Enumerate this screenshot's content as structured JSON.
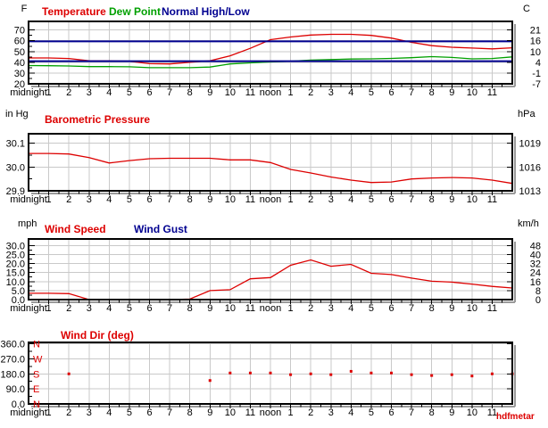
{
  "watermark": "hdfmetar",
  "colors": {
    "red": "#dd0000",
    "green": "#00a000",
    "navy": "#000090",
    "grid": "#c9c9c9",
    "axis": "#000000",
    "shadow": "#9a9a9a"
  },
  "x_axis": {
    "labels": [
      "midnight",
      "1",
      "2",
      "3",
      "4",
      "5",
      "6",
      "7",
      "8",
      "9",
      "10",
      "11",
      "noon",
      "1",
      "2",
      "3",
      "4",
      "5",
      "6",
      "7",
      "8",
      "9",
      "10",
      "11"
    ],
    "hours": 24
  },
  "chart_data": [
    {
      "type": "line",
      "unit_left": "F",
      "unit_right": "C",
      "legend": [
        {
          "label": "Temperature",
          "color": "#dd0000"
        },
        {
          "label": "Dew Point",
          "color": "#00a000"
        },
        {
          "label": "Normal High/Low",
          "color": "#000090"
        }
      ],
      "ylim": [
        20,
        78
      ],
      "xlim": [
        0,
        24
      ],
      "yticks": {
        "values": [
          70,
          60,
          50,
          40,
          30,
          20
        ],
        "labels_left": [
          "70",
          "60",
          "50",
          "40",
          "30",
          "20"
        ],
        "labels_right": [
          "21",
          "16",
          "10",
          "4",
          "-1",
          "-7"
        ]
      },
      "series": [
        {
          "name": "Temperature",
          "color": "#dd0000",
          "width": 1.3,
          "values": [
            44,
            44,
            43.5,
            41.5,
            41.3,
            41,
            38.7,
            38.5,
            40,
            41.5,
            46,
            53,
            61,
            63.5,
            65.3,
            66,
            66,
            65,
            62.5,
            58.5,
            55.5,
            54,
            53.2,
            52.5,
            53.5
          ]
        },
        {
          "name": "Dew Point",
          "color": "#00a000",
          "width": 1.3,
          "values": [
            37,
            36.8,
            36.6,
            36,
            36,
            35.8,
            35,
            35,
            35,
            35.6,
            38.5,
            39.5,
            40.3,
            41,
            42,
            42.5,
            43,
            43.2,
            43.6,
            44.3,
            45.3,
            44.5,
            43.2,
            43.5,
            45
          ]
        },
        {
          "name": "Normal High",
          "color": "#000090",
          "width": 2,
          "hline": 59.5
        },
        {
          "name": "Normal Low",
          "color": "#000090",
          "width": 2,
          "hline": 41
        }
      ]
    },
    {
      "type": "line",
      "unit_left": "in Hg",
      "unit_right": "hPa",
      "legend": [
        {
          "label": "Barometric Pressure",
          "color": "#dd0000"
        }
      ],
      "ylim": [
        29.9,
        30.14
      ],
      "xlim": [
        0,
        24
      ],
      "yticks": {
        "values": [
          30.1,
          30.0,
          29.9
        ],
        "labels_left": [
          "30.1",
          "30.0",
          "29.9"
        ],
        "labels_right": [
          "1019",
          "1016",
          "1013"
        ]
      },
      "series": [
        {
          "name": "Barometric Pressure",
          "color": "#dd0000",
          "width": 1.3,
          "values": [
            30.057,
            30.057,
            30.055,
            30.04,
            30.017,
            30.027,
            30.035,
            30.037,
            30.037,
            30.037,
            30.03,
            30.03,
            30.019,
            29.99,
            29.975,
            29.958,
            29.945,
            29.935,
            29.937,
            29.95,
            29.954,
            29.956,
            29.954,
            29.945,
            29.931
          ]
        }
      ]
    },
    {
      "type": "line",
      "unit_left": "mph",
      "unit_right": "km/h",
      "legend": [
        {
          "label": "Wind Speed",
          "color": "#dd0000"
        },
        {
          "label": "Wind Gust",
          "color": "#000090"
        }
      ],
      "ylim": [
        0,
        33.6
      ],
      "xlim": [
        0,
        24
      ],
      "yticks": {
        "values": [
          30,
          25,
          20,
          15,
          10,
          5,
          0
        ],
        "labels_left": [
          "30.0",
          "25.0",
          "20.0",
          "15.0",
          "10.0",
          "5.0",
          "0.0"
        ],
        "labels_right": [
          "48",
          "40",
          "32",
          "24",
          "16",
          "8",
          "0"
        ]
      },
      "series": [
        {
          "name": "Wind Speed",
          "color": "#dd0000",
          "width": 1.3,
          "values": [
            3.5,
            3.5,
            3.3,
            0,
            0,
            0,
            0,
            0,
            0.3,
            5,
            5.5,
            11.5,
            12.2,
            19,
            22,
            18.5,
            19.5,
            14.6,
            13.9,
            11.9,
            10.2,
            9.7,
            8.6,
            7.3,
            6.4
          ]
        },
        {
          "name": "Wind Gust",
          "color": "#000090",
          "width": 1.3,
          "values": []
        }
      ]
    },
    {
      "type": "scatter",
      "unit_left": "",
      "unit_right": "",
      "legend": [
        {
          "label": "Wind Dir (deg)",
          "color": "#dd0000"
        }
      ],
      "ylim": [
        0,
        368
      ],
      "xlim": [
        0,
        24
      ],
      "yticks": {
        "values": [
          360,
          270,
          180,
          90,
          0
        ],
        "labels_left": [
          "360.0",
          "270.0",
          "180.0",
          "90.0",
          "0.0"
        ],
        "labels_right": []
      },
      "dir_letters": {
        "labels": [
          "N",
          "W",
          "S",
          "E",
          "N"
        ],
        "values": [
          360,
          270,
          180,
          90,
          0
        ],
        "color": "#dd0000"
      },
      "series": [
        {
          "name": "Wind Dir",
          "color": "#dd0000",
          "marker": 3,
          "points": [
            [
              2,
              180
            ],
            [
              9,
              140
            ],
            [
              10,
              185
            ],
            [
              11,
              185
            ],
            [
              12,
              185
            ],
            [
              13,
              175
            ],
            [
              14,
              180
            ],
            [
              15,
              175
            ],
            [
              16,
              195
            ],
            [
              17,
              185
            ],
            [
              18,
              185
            ],
            [
              19,
              175
            ],
            [
              20,
              170
            ],
            [
              21,
              175
            ],
            [
              22,
              167
            ],
            [
              23,
              180
            ],
            [
              24,
              180
            ]
          ]
        }
      ]
    }
  ]
}
